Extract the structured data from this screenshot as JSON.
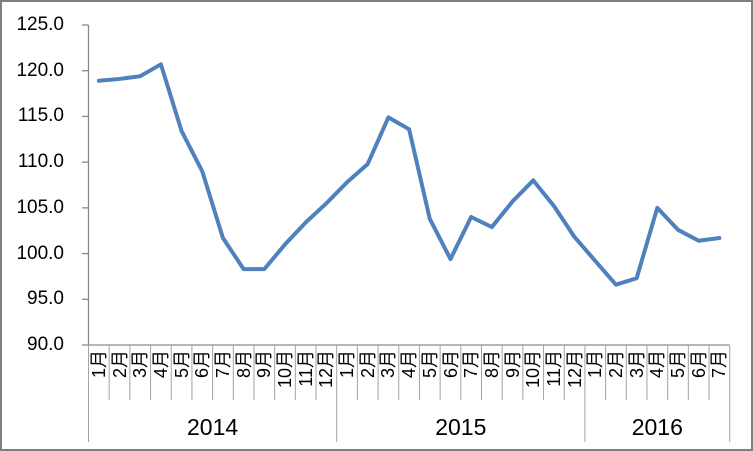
{
  "chart_data": {
    "type": "line",
    "title": "",
    "xlabel": "",
    "ylabel": "",
    "ylim": [
      90.0,
      125.0
    ],
    "y_tick_interval": 5.0,
    "y_tick_labels": [
      "125.0",
      "120.0",
      "115.0",
      "110.0",
      "105.0",
      "100.0",
      "95.0",
      "90.0"
    ],
    "grid": "off",
    "legend": "none",
    "line_color": "#4F81BD",
    "axis_color": "#8a8a8a",
    "separator_color": "#a3a3a3",
    "frame_border_color": "#7f7f7f",
    "groups": [
      {
        "year": "2014",
        "months": [
          "1月",
          "2月",
          "3月",
          "4月",
          "5月",
          "6月",
          "7月",
          "8月",
          "9月",
          "10月",
          "11月",
          "12月"
        ],
        "values": [
          118.9,
          119.1,
          119.4,
          120.7,
          113.4,
          109.0,
          101.7,
          98.3,
          98.3,
          101.0,
          103.4,
          105.5
        ]
      },
      {
        "year": "2015",
        "months": [
          "1月",
          "2月",
          "3月",
          "4月",
          "5月",
          "6月",
          "7月",
          "8月",
          "9月",
          "10月",
          "11月",
          "12月"
        ],
        "values": [
          107.8,
          109.8,
          114.9,
          113.6,
          103.8,
          99.4,
          104.0,
          102.9,
          105.7,
          108.0,
          105.2,
          101.8
        ]
      },
      {
        "year": "2016",
        "months": [
          "1月",
          "2月",
          "3月",
          "4月",
          "5月",
          "6月",
          "7月"
        ],
        "values": [
          99.2,
          96.6,
          97.3,
          105.0,
          102.6,
          101.4,
          101.7
        ]
      }
    ]
  }
}
